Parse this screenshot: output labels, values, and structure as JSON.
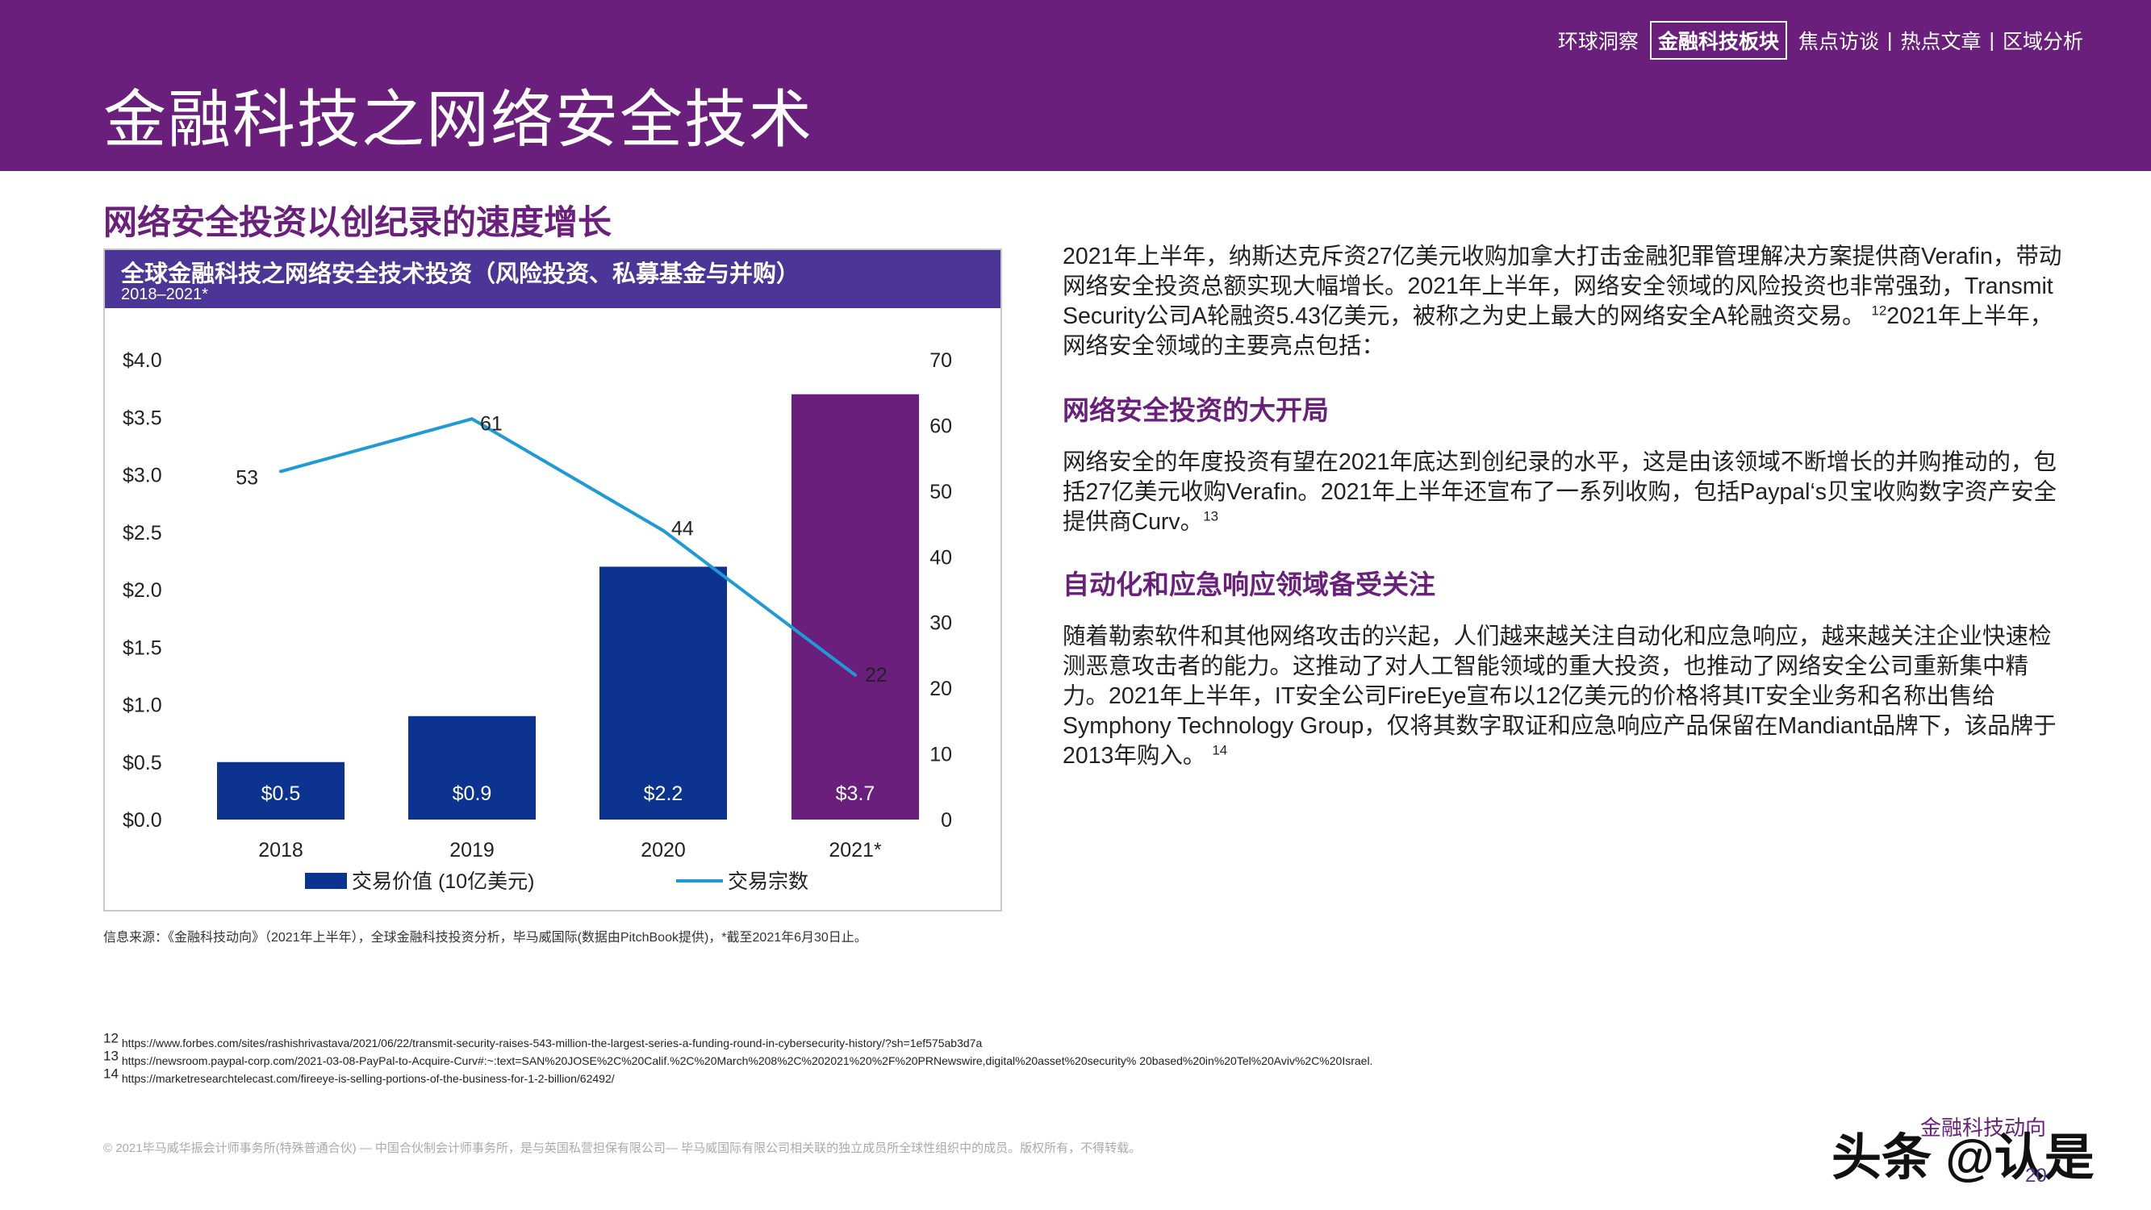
{
  "header": {
    "title": "金融科技之网络安全技术",
    "nav": [
      "环球洞察",
      "金融科技板块",
      "焦点访谈",
      "热点文章",
      "区域分析"
    ],
    "nav_active_index": 1
  },
  "section_title": "网络安全投资以创纪录的速度增长",
  "chart_data": {
    "type": "bar",
    "title": "全球金融科技之网络安全技术投资（风险投资、私募基金与并购）",
    "subtitle": "2018–2021*",
    "categories": [
      "2018",
      "2019",
      "2020",
      "2021*"
    ],
    "series": [
      {
        "name": "交易价值 (10亿美元)",
        "type": "bar",
        "axis": "left",
        "values": [
          0.5,
          0.9,
          2.2,
          3.7
        ],
        "labels": [
          "$0.5",
          "$0.9",
          "$2.2",
          "$3.7"
        ],
        "colors": [
          "#0d3391",
          "#0d3391",
          "#0d3391",
          "#6b1f7c"
        ]
      },
      {
        "name": "交易宗数",
        "type": "line",
        "axis": "right",
        "values": [
          53,
          61,
          44,
          22
        ],
        "color": "#1e9ad6"
      }
    ],
    "y_left": {
      "ylim": [
        0,
        4.0
      ],
      "ticks": [
        "$0.0",
        "$0.5",
        "$1.0",
        "$1.5",
        "$2.0",
        "$2.5",
        "$3.0",
        "$3.5",
        "$4.0"
      ]
    },
    "y_right": {
      "ylim": [
        0,
        70
      ],
      "ticks": [
        "0",
        "10",
        "20",
        "30",
        "40",
        "50",
        "60",
        "70"
      ]
    },
    "grid": false,
    "legend": "bottom"
  },
  "source": "信息来源：《金融科技动向》（2021年上半年），全球金融科技投资分析，毕马威国际(数据由PitchBook提供)，*截至2021年6月30日止。",
  "intro": {
    "text": "2021年上半年，纳斯达克斥资27亿美元收购加拿大打击金融犯罪管理解决方案提供商Verafin，带动网络安全投资总额实现大幅增长。2021年上半年，网络安全领域的风险投资也非常强劲，Transmit Security公司A轮融资5.43亿美元，被称之为史上最大的网络安全A轮融资交易。",
    "sup": "12",
    "text2": "2021年上半年，网络安全领域的主要亮点包括："
  },
  "highlight1": {
    "heading": "网络安全投资的大开局",
    "text": "网络安全的年度投资有望在2021年底达到创纪录的水平，这是由该领域不断增长的并购推动的，包括27亿美元收购Verafin。2021年上半年还宣布了一系列收购，包括Paypal‘s贝宝收购数字资产安全提供商Curv。",
    "sup": "13"
  },
  "highlight2": {
    "heading": "自动化和应急响应领域备受关注",
    "text": "随着勒索软件和其他网络攻击的兴起，人们越来越关注自动化和应急响应，越来越关注企业快速检测恶意攻击者的能力。这推动了对人工智能领域的重大投资，也推动了网络安全公司重新集中精力。2021年上半年，IT安全公司FireEye宣布以12亿美元的价格将其IT安全业务和名称出售给Symphony Technology Group，仅将其数字取证和应急响应产品保留在Mandiant品牌下，该品牌于2013年购入。",
    "sup": "14"
  },
  "footnotes": [
    {
      "num": "12",
      "text": "https://www.forbes.com/sites/rashishrivastava/2021/06/22/transmit-security-raises-543-million-the-largest-series-a-funding-round-in-cybersecurity-history/?sh=1ef575ab3d7a"
    },
    {
      "num": "13",
      "text": "https://newsroom.paypal-corp.com/2021-03-08-PayPal-to-Acquire-Curv#:~:text=SAN%20JOSE%2C%20Calif.%2C%20March%208%2C%202021%20%2F%20PRNewswire,digital%20asset%20security% 20based%20in%20Tel%20Aviv%2C%20Israel."
    },
    {
      "num": "14",
      "text": "https://marketresearchtelecast.com/fireeye-is-selling-portions-of-the-business-for-1-2-billion/62492/"
    }
  ],
  "copyright": "© 2021毕马威华振会计师事务所(特殊普通合伙) — 中国合伙制会计师事务所，是与英国私营担保有限公司— 毕马威国际有限公司相关联的独立成员所全球性组织中的成员。版权所有，不得转载。",
  "watermark": "头条 @认是",
  "watermark_small": "金融科技动向",
  "page_number": "20"
}
